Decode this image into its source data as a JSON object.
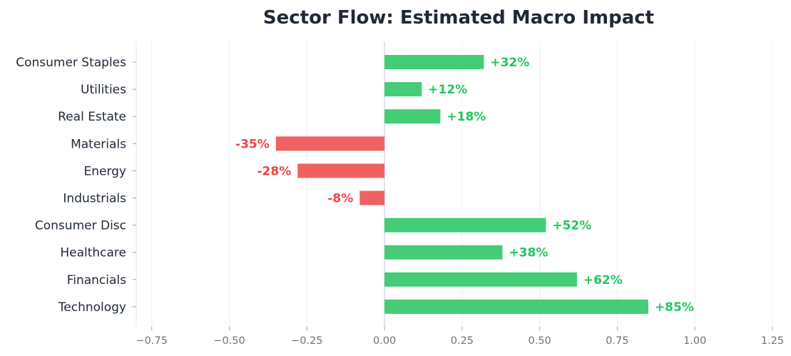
{
  "chart_data": {
    "type": "bar",
    "orientation": "horizontal",
    "title": "Sector Flow: Estimated Macro Impact",
    "xlabel": "",
    "ylabel": "",
    "categories": [
      "Consumer Staples",
      "Utilities",
      "Real Estate",
      "Materials",
      "Energy",
      "Industrials",
      "Consumer Disc",
      "Healthcare",
      "Financials",
      "Technology"
    ],
    "values": [
      0.32,
      0.12,
      0.18,
      -0.35,
      -0.28,
      -0.08,
      0.52,
      0.38,
      0.62,
      0.85
    ],
    "value_labels": [
      "+32%",
      "+12%",
      "+18%",
      "-35%",
      "-28%",
      "-8%",
      "+52%",
      "+38%",
      "+62%",
      "+85%"
    ],
    "xlim": [
      -0.8,
      1.25
    ],
    "xticks": [
      -0.75,
      -0.5,
      -0.25,
      0.0,
      0.25,
      0.5,
      0.75,
      1.0,
      1.25
    ],
    "xtick_labels": [
      "−0.75",
      "−0.50",
      "−0.25",
      "0.00",
      "0.25",
      "0.50",
      "0.75",
      "1.00",
      "1.25"
    ],
    "grid": "vertical",
    "colors": {
      "positive": "#44cc77",
      "negative": "#f06262",
      "positive_text": "#22c55e",
      "negative_text": "#ef4444",
      "zero_line": "#d6dbe6",
      "grid": "#eef0f4"
    }
  }
}
